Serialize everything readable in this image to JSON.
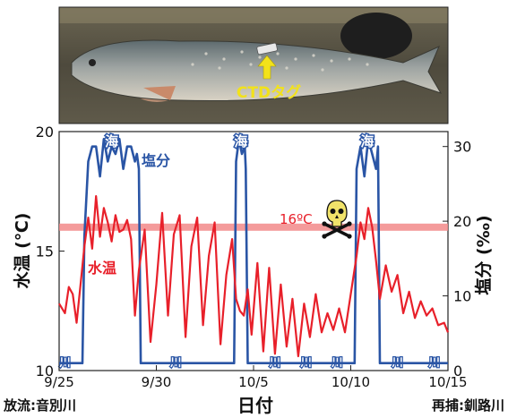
{
  "photo": {
    "tag_label": "CTDタグ",
    "description_colors": {
      "water": "#5a5446",
      "fish_body": "#8e8a80",
      "arrow": "#f2e21a"
    }
  },
  "axes": {
    "left_label": "水温 (℃)",
    "right_label": "塩分 (‰)",
    "x_label": "日付",
    "bottom_left_note": "放流:音別川",
    "bottom_right_note": "再捕:釧路川"
  },
  "annotations": {
    "threshold_label": "16ºC",
    "skull_icon": "skull-and-crossbones-icon",
    "sea_label": "海",
    "river_label": "川",
    "salinity_series_label": "塩分",
    "temperature_series_label": "水温"
  },
  "colors": {
    "temperature": "#e8202a",
    "salinity": "#2a55a5",
    "threshold_band": "#f28a8a"
  },
  "chart_data": {
    "type": "line",
    "x_ticks": [
      "9/25",
      "9/30",
      "10/5",
      "10/10",
      "10/15"
    ],
    "x_tick_days": [
      0,
      5,
      10,
      15,
      20
    ],
    "x_range_days": [
      0,
      20
    ],
    "x_unit": "days from 9/25",
    "left_ylim": [
      10,
      20
    ],
    "left_yticks": [
      10,
      15,
      20
    ],
    "right_ylim": [
      0,
      32
    ],
    "right_yticks": [
      0,
      10,
      20,
      30
    ],
    "threshold": 16,
    "sea_periods_days": [
      [
        1.3,
        4.1
      ],
      [
        9.1,
        9.6
      ],
      [
        15.3,
        16.4
      ]
    ],
    "river_marker_days": [
      0.3,
      6.0,
      11.1,
      12.7,
      14.3,
      17.4,
      19.3
    ],
    "series": [
      {
        "name": "水温",
        "axis": "left",
        "x": [
          0,
          0.3,
          0.5,
          0.7,
          0.9,
          1.1,
          1.3,
          1.5,
          1.7,
          1.9,
          2.1,
          2.3,
          2.5,
          2.7,
          2.9,
          3.1,
          3.3,
          3.5,
          3.7,
          3.9,
          4.1,
          4.4,
          4.7,
          5.0,
          5.3,
          5.6,
          5.9,
          6.2,
          6.5,
          6.8,
          7.1,
          7.4,
          7.7,
          8.0,
          8.3,
          8.6,
          8.9,
          9.1,
          9.3,
          9.5,
          9.7,
          9.9,
          10.2,
          10.5,
          10.8,
          11.1,
          11.4,
          11.7,
          12.0,
          12.3,
          12.6,
          12.9,
          13.2,
          13.5,
          13.8,
          14.1,
          14.4,
          14.7,
          15.0,
          15.3,
          15.5,
          15.7,
          15.9,
          16.1,
          16.3,
          16.5,
          16.8,
          17.1,
          17.4,
          17.7,
          18.0,
          18.3,
          18.6,
          18.9,
          19.2,
          19.5,
          19.8,
          20.0
        ],
        "values": [
          12.8,
          12.4,
          13.5,
          13.2,
          12.0,
          13.6,
          15.2,
          16.4,
          15.1,
          17.3,
          15.6,
          16.8,
          16.2,
          15.4,
          16.5,
          15.8,
          15.9,
          16.3,
          15.5,
          12.3,
          14.2,
          15.9,
          11.2,
          13.6,
          16.6,
          12.3,
          15.7,
          16.5,
          11.4,
          15.2,
          16.4,
          11.9,
          14.8,
          16.2,
          11.1,
          14.0,
          15.5,
          13.0,
          12.5,
          12.3,
          13.4,
          11.5,
          14.5,
          10.8,
          14.3,
          10.7,
          13.6,
          11.0,
          13.0,
          10.6,
          12.8,
          11.4,
          13.2,
          11.6,
          12.4,
          11.7,
          12.6,
          11.6,
          13.2,
          14.8,
          16.2,
          15.5,
          16.8,
          16.0,
          14.6,
          13.0,
          14.4,
          13.3,
          14.0,
          12.4,
          13.3,
          12.2,
          12.9,
          12.3,
          12.6,
          11.9,
          12.0,
          11.6
        ]
      },
      {
        "name": "塩分",
        "axis": "right",
        "x": [
          0,
          1.2,
          1.3,
          1.5,
          1.7,
          1.9,
          2.1,
          2.3,
          2.5,
          2.7,
          2.9,
          3.1,
          3.3,
          3.5,
          3.7,
          3.9,
          4.0,
          4.1,
          4.2,
          9.0,
          9.1,
          9.25,
          9.4,
          9.55,
          9.6,
          9.7,
          15.2,
          15.3,
          15.5,
          15.7,
          15.9,
          16.1,
          16.3,
          16.4,
          16.5,
          20.0
        ],
        "values": [
          1,
          1,
          18,
          28,
          30,
          30,
          26,
          31,
          28,
          30,
          29,
          31,
          27,
          30,
          30,
          28,
          29,
          27,
          1,
          1,
          28,
          31,
          29,
          30,
          27,
          1,
          1,
          27,
          30,
          26,
          31,
          29,
          27,
          30,
          1,
          1
        ]
      }
    ]
  }
}
